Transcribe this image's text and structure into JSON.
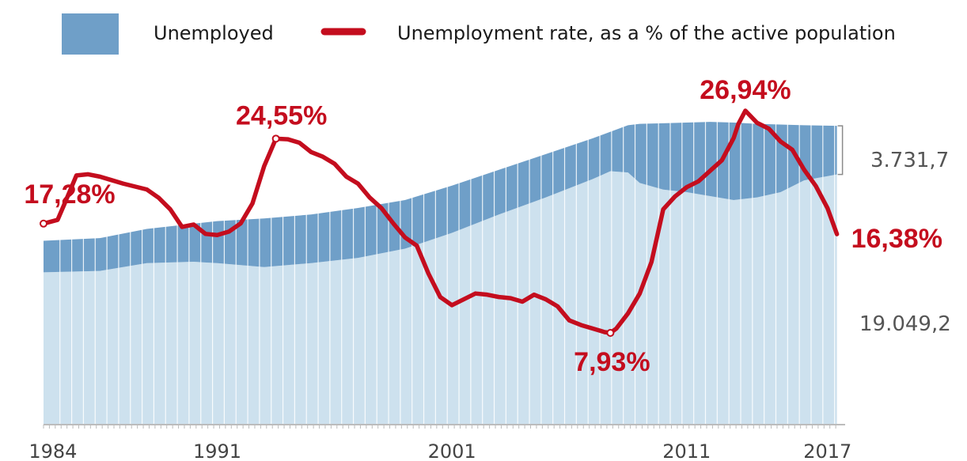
{
  "colors": {
    "employed": "#cde1ee",
    "unemployed": "#6f9fc8",
    "rate": "#c40d1e",
    "gridline": "#ffffff",
    "text": "#444444"
  },
  "legend": {
    "unemployed_label": "Unemployed",
    "rate_label": "Unemployment rate, as a % of the active population"
  },
  "side_labels": {
    "unemployed_value": "3.731,7",
    "employed_value": "19.049,2"
  },
  "chart_data": {
    "type": "area",
    "x_range": [
      1983.6,
      2017.75
    ],
    "x_ticks": [
      {
        "value": 1984,
        "label": "1984"
      },
      {
        "value": 1991,
        "label": "1991"
      },
      {
        "value": 2001,
        "label": "2001"
      },
      {
        "value": 2011,
        "label": "2011"
      },
      {
        "value": 2017,
        "label": "2017"
      }
    ],
    "series": [
      {
        "name": "Unemployed",
        "kind": "area",
        "years": [
          1983.6,
          1986,
          1988,
          1990,
          1991,
          1993,
          1995,
          1997,
          1999,
          2001,
          2003,
          2005,
          2007,
          2007.75,
          2008.5,
          2009,
          2010,
          2011,
          2012,
          2013,
          2014,
          2015,
          2016,
          2017.4
        ],
        "active_pop": [
          14000,
          14200,
          14900,
          15300,
          15500,
          15700,
          16000,
          16500,
          17100,
          18200,
          19400,
          20600,
          21800,
          22300,
          22800,
          22900,
          22950,
          23000,
          23050,
          23000,
          22900,
          22850,
          22800,
          22750
        ],
        "employed": [
          11600,
          11700,
          12300,
          12400,
          12300,
          12000,
          12300,
          12700,
          13400,
          14600,
          16000,
          17300,
          18700,
          19300,
          19200,
          18400,
          17900,
          17700,
          17400,
          17100,
          17300,
          17700,
          18600,
          19049
        ]
      },
      {
        "name": "Unemployment rate, as a % of the active population",
        "kind": "line",
        "x": [
          1983.6,
          1984.2,
          1984.5,
          1985,
          1985.5,
          1986,
          1986.5,
          1987,
          1988,
          1988.5,
          1989,
          1989.5,
          1990,
          1990.5,
          1991,
          1991.5,
          1992,
          1992.5,
          1993,
          1993.5,
          1994,
          1994.5,
          1995,
          1995.5,
          1996,
          1996.5,
          1997,
          1997.5,
          1998,
          1998.5,
          1999,
          1999.5,
          2000,
          2000.5,
          2001,
          2001.5,
          2002,
          2002.5,
          2003,
          2003.5,
          2004,
          2004.5,
          2005,
          2005.5,
          2006,
          2006.5,
          2007,
          2007.5,
          2007.75,
          2008,
          2008.5,
          2009,
          2009.5,
          2010,
          2010.5,
          2011,
          2011.5,
          2012,
          2012.5,
          2013,
          2013.2,
          2013.5,
          2014,
          2014.5,
          2015,
          2015.5,
          2016,
          2016.5,
          2017,
          2017.4
        ],
        "y": [
          17.28,
          17.6,
          19.0,
          21.4,
          21.5,
          21.3,
          21.0,
          20.7,
          20.2,
          19.5,
          18.5,
          17.0,
          17.2,
          16.4,
          16.3,
          16.6,
          17.3,
          19.0,
          22.2,
          24.55,
          24.5,
          24.2,
          23.4,
          23.0,
          22.4,
          21.3,
          20.7,
          19.5,
          18.6,
          17.3,
          16.1,
          15.4,
          13.0,
          11.0,
          10.3,
          10.8,
          11.3,
          11.2,
          11.0,
          10.9,
          10.6,
          11.2,
          10.8,
          10.2,
          9.0,
          8.6,
          8.3,
          8.0,
          7.93,
          8.3,
          9.6,
          11.3,
          14.0,
          18.5,
          19.6,
          20.4,
          20.9,
          21.8,
          22.7,
          24.6,
          25.8,
          26.94,
          25.9,
          25.4,
          24.3,
          23.6,
          21.9,
          20.5,
          18.6,
          16.38
        ],
        "annotations": [
          {
            "x": 1983.6,
            "y": 17.28,
            "label": "17,28%"
          },
          {
            "x": 1993.5,
            "y": 24.55,
            "label": "24,55%"
          },
          {
            "x": 2007.75,
            "y": 7.93,
            "label": "7,93%"
          },
          {
            "x": 2013.5,
            "y": 26.94,
            "label": "26,94%"
          },
          {
            "x": 2017.4,
            "y": 16.38,
            "label": "16,38%"
          }
        ]
      }
    ]
  }
}
